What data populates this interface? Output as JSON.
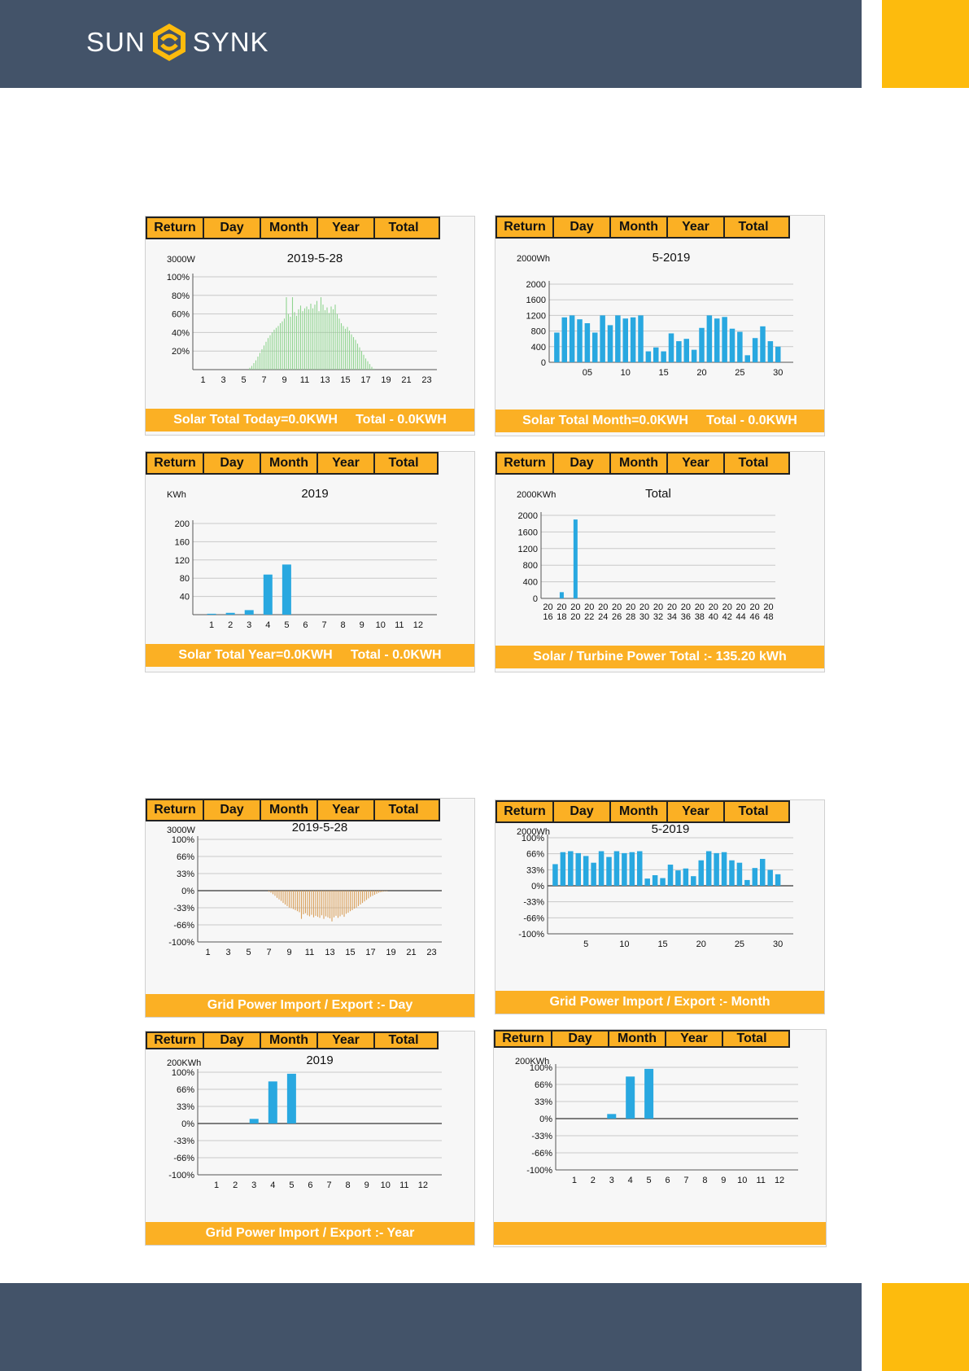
{
  "brand": {
    "part1": "SUN",
    "part2": "SYNK",
    "colors": {
      "navy": "#435369",
      "accent": "#fdbb0d",
      "tab": "#fbb024",
      "blue": "#29a8e0",
      "green": "#8fd48f",
      "bronze": "#d9a05b"
    }
  },
  "tabs": [
    "Return",
    "Day",
    "Month",
    "Year",
    "Total"
  ],
  "panels": [
    {
      "footer": "Solar Total Today=0.0KWH     Total - 0.0KWH",
      "chart_data": {
        "type": "bar",
        "title": "2019-5-28",
        "unit": "3000W",
        "y_tick_labels": [
          "100%",
          "80%",
          "60%",
          "40%",
          "20%"
        ],
        "x_tick_labels": [
          "1",
          "3",
          "5",
          "7",
          "9",
          "11",
          "13",
          "15",
          "17",
          "19",
          "21",
          "23"
        ],
        "xlim": [
          0,
          24
        ],
        "ylim": [
          0,
          100
        ],
        "color": "#8fd48f",
        "x": [
          5.6,
          5.8,
          6.0,
          6.2,
          6.4,
          6.6,
          6.8,
          7.0,
          7.2,
          7.4,
          7.6,
          7.8,
          8.0,
          8.2,
          8.4,
          8.6,
          8.8,
          9.0,
          9.2,
          9.4,
          9.6,
          9.8,
          10.0,
          10.2,
          10.4,
          10.6,
          10.8,
          11.0,
          11.2,
          11.4,
          11.6,
          11.8,
          12.0,
          12.2,
          12.4,
          12.6,
          12.8,
          13.0,
          13.2,
          13.4,
          13.6,
          13.8,
          14.0,
          14.2,
          14.4,
          14.6,
          14.8,
          15.0,
          15.2,
          15.4,
          15.6,
          15.8,
          16.0,
          16.2,
          16.4,
          16.6,
          16.8,
          17.0,
          17.2,
          17.4,
          17.6,
          17.8
        ],
        "values": [
          2,
          4,
          7,
          10,
          14,
          18,
          22,
          26,
          30,
          34,
          37,
          40,
          43,
          45,
          47,
          50,
          52,
          55,
          78,
          60,
          57,
          78,
          62,
          58,
          65,
          69,
          63,
          66,
          68,
          65,
          71,
          66,
          70,
          74,
          63,
          78,
          70,
          64,
          67,
          61,
          68,
          65,
          70,
          60,
          55,
          50,
          47,
          44,
          46,
          42,
          38,
          35,
          32,
          28,
          24,
          20,
          16,
          12,
          9,
          6,
          3,
          1
        ]
      }
    },
    {
      "footer": "Solar Total Month=0.0KWH     Total - 0.0KWH",
      "chart_data": {
        "type": "bar",
        "title": "5-2019",
        "unit": "2000Wh",
        "y_tick_labels": [
          "2000",
          "1600",
          "1200",
          "800",
          "400",
          "0"
        ],
        "x_tick_labels": [
          "05",
          "10",
          "15",
          "20",
          "25",
          "30"
        ],
        "ylim": [
          0,
          2000
        ],
        "color": "#29a8e0",
        "x": [
          1,
          2,
          3,
          4,
          5,
          6,
          7,
          8,
          9,
          10,
          11,
          12,
          13,
          14,
          15,
          16,
          17,
          18,
          19,
          20,
          21,
          22,
          23,
          24,
          25,
          26,
          27,
          28,
          29,
          30,
          31
        ],
        "values": [
          760,
          1150,
          1200,
          1100,
          1000,
          760,
          1200,
          950,
          1200,
          1120,
          1150,
          1200,
          280,
          380,
          280,
          740,
          540,
          600,
          320,
          880,
          1200,
          1120,
          1160,
          860,
          780,
          180,
          620,
          920,
          540,
          400,
          0
        ]
      }
    },
    {
      "footer": "Solar Total Year=0.0KWH     Total - 0.0KWH",
      "chart_data": {
        "type": "bar",
        "title": "2019",
        "unit": "KWh",
        "y_tick_labels": [
          "200",
          "160",
          "120",
          "80",
          "40"
        ],
        "x_tick_labels": [
          "1",
          "2",
          "3",
          "4",
          "5",
          "6",
          "7",
          "8",
          "9",
          "10",
          "11",
          "12"
        ],
        "ylim": [
          0,
          200
        ],
        "color": "#29a8e0",
        "x": [
          1,
          2,
          3,
          4,
          5,
          6,
          7,
          8,
          9,
          10,
          11,
          12
        ],
        "values": [
          2,
          4,
          10,
          88,
          110,
          0,
          0,
          0,
          0,
          0,
          0,
          0
        ]
      }
    },
    {
      "footer": "Solar / Turbine Power Total :- 135.20 kWh",
      "chart_data": {
        "type": "bar",
        "title": "Total",
        "unit": "2000KWh",
        "y_tick_labels": [
          "2000",
          "1600",
          "1200",
          "800",
          "400",
          "0"
        ],
        "x_tick_labels": [
          "20 16",
          "20 18",
          "20 20",
          "20 22",
          "20 24",
          "20 26",
          "20 28",
          "20 30",
          "20 32",
          "20 34",
          "20 36",
          "20 38",
          "20 40",
          "20 42",
          "20 44",
          "20 46",
          "20 48"
        ],
        "ylim": [
          0,
          2000
        ],
        "color": "#29a8e0",
        "x": [
          "2016",
          "2018",
          "2020",
          "2022",
          "2024",
          "2026",
          "2028",
          "2030",
          "2032",
          "2034",
          "2036",
          "2038",
          "2040",
          "2042",
          "2044",
          "2046",
          "2048"
        ],
        "values": [
          0,
          150,
          1900,
          0,
          0,
          0,
          0,
          0,
          0,
          0,
          0,
          0,
          0,
          0,
          0,
          0,
          0
        ]
      }
    },
    {
      "footer": "Grid Power Import / Export :- Day",
      "chart_data": {
        "type": "bar",
        "title": "2019-5-28",
        "unit": "3000W",
        "y_tick_labels": [
          "100%",
          "66%",
          "33%",
          "0%",
          "-33%",
          "-66%",
          "-100%"
        ],
        "x_tick_labels": [
          "1",
          "3",
          "5",
          "7",
          "9",
          "11",
          "13",
          "15",
          "17",
          "19",
          "21",
          "23"
        ],
        "xlim": [
          0,
          24
        ],
        "ylim": [
          -100,
          100
        ],
        "color": "#d9a05b",
        "x": [
          7.0,
          7.2,
          7.4,
          7.6,
          7.8,
          8.0,
          8.2,
          8.4,
          8.6,
          8.8,
          9.0,
          9.2,
          9.4,
          9.6,
          9.8,
          10.0,
          10.2,
          10.4,
          10.6,
          10.8,
          11.0,
          11.2,
          11.4,
          11.6,
          11.8,
          12.0,
          12.2,
          12.4,
          12.6,
          12.8,
          13.0,
          13.2,
          13.4,
          13.6,
          13.8,
          14.0,
          14.2,
          14.4,
          14.6,
          14.8,
          15.0,
          15.2,
          15.4,
          15.6,
          15.8,
          16.0,
          16.2,
          16.4,
          16.6,
          16.8,
          17.0,
          17.2,
          17.4,
          17.6,
          17.8,
          18.0,
          18.2,
          18.4,
          18.6
        ],
        "values": [
          -2,
          -4,
          -7,
          -10,
          -14,
          -17,
          -20,
          -24,
          -27,
          -30,
          -33,
          -34,
          -36,
          -38,
          -40,
          -42,
          -55,
          -46,
          -44,
          -48,
          -50,
          -47,
          -52,
          -49,
          -51,
          -53,
          -48,
          -55,
          -50,
          -52,
          -54,
          -60,
          -52,
          -49,
          -53,
          -50,
          -47,
          -51,
          -45,
          -43,
          -40,
          -38,
          -35,
          -33,
          -30,
          -27,
          -24,
          -21,
          -18,
          -15,
          -12,
          -10,
          -8,
          -6,
          -4,
          -3,
          -2,
          -1,
          -1
        ]
      }
    },
    {
      "footer": "Grid Power Import / Export :- Month",
      "chart_data": {
        "type": "bar",
        "title": "5-2019",
        "unit": "2000Wh",
        "y_tick_labels": [
          "100%",
          "66%",
          "33%",
          "0%",
          "-33%",
          "-66%",
          "-100%"
        ],
        "x_tick_labels": [
          "5",
          "10",
          "15",
          "20",
          "25",
          "30"
        ],
        "ylim": [
          -100,
          100
        ],
        "color": "#29a8e0",
        "x": [
          1,
          2,
          3,
          4,
          5,
          6,
          7,
          8,
          9,
          10,
          11,
          12,
          13,
          14,
          15,
          16,
          17,
          18,
          19,
          20,
          21,
          22,
          23,
          24,
          25,
          26,
          27,
          28,
          29,
          30,
          31
        ],
        "values": [
          45,
          70,
          72,
          68,
          62,
          48,
          72,
          60,
          72,
          68,
          70,
          72,
          15,
          22,
          16,
          44,
          32,
          36,
          20,
          53,
          72,
          68,
          70,
          53,
          48,
          12,
          37,
          56,
          33,
          24,
          0
        ]
      }
    },
    {
      "footer": "Grid Power Import / Export :- Year",
      "chart_data": {
        "type": "bar",
        "title": "2019",
        "unit": "200KWh",
        "y_tick_labels": [
          "100%",
          "66%",
          "33%",
          "0%",
          "-33%",
          "-66%",
          "-100%"
        ],
        "x_tick_labels": [
          "1",
          "2",
          "3",
          "4",
          "5",
          "6",
          "7",
          "8",
          "9",
          "10",
          "11",
          "12"
        ],
        "ylim": [
          -100,
          100
        ],
        "color": "#29a8e0",
        "x": [
          1,
          2,
          3,
          4,
          5,
          6,
          7,
          8,
          9,
          10,
          11,
          12
        ],
        "values": [
          0,
          0,
          9,
          82,
          97,
          0,
          0,
          0,
          0,
          0,
          0,
          0
        ]
      }
    },
    {
      "footer": "",
      "chart_data": {
        "type": "bar",
        "title": "",
        "unit": "200KWh",
        "y_tick_labels": [
          "100%",
          "66%",
          "33%",
          "0%",
          "-33%",
          "-66%",
          "-100%"
        ],
        "x_tick_labels": [
          "1",
          "2",
          "3",
          "4",
          "5",
          "6",
          "7",
          "8",
          "9",
          "10",
          "11",
          "12"
        ],
        "ylim": [
          -100,
          100
        ],
        "color": "#29a8e0",
        "x": [
          1,
          2,
          3,
          4,
          5,
          6,
          7,
          8,
          9,
          10,
          11,
          12
        ],
        "values": [
          0,
          0,
          9,
          82,
          97,
          0,
          0,
          0,
          0,
          0,
          0,
          0
        ]
      }
    }
  ]
}
